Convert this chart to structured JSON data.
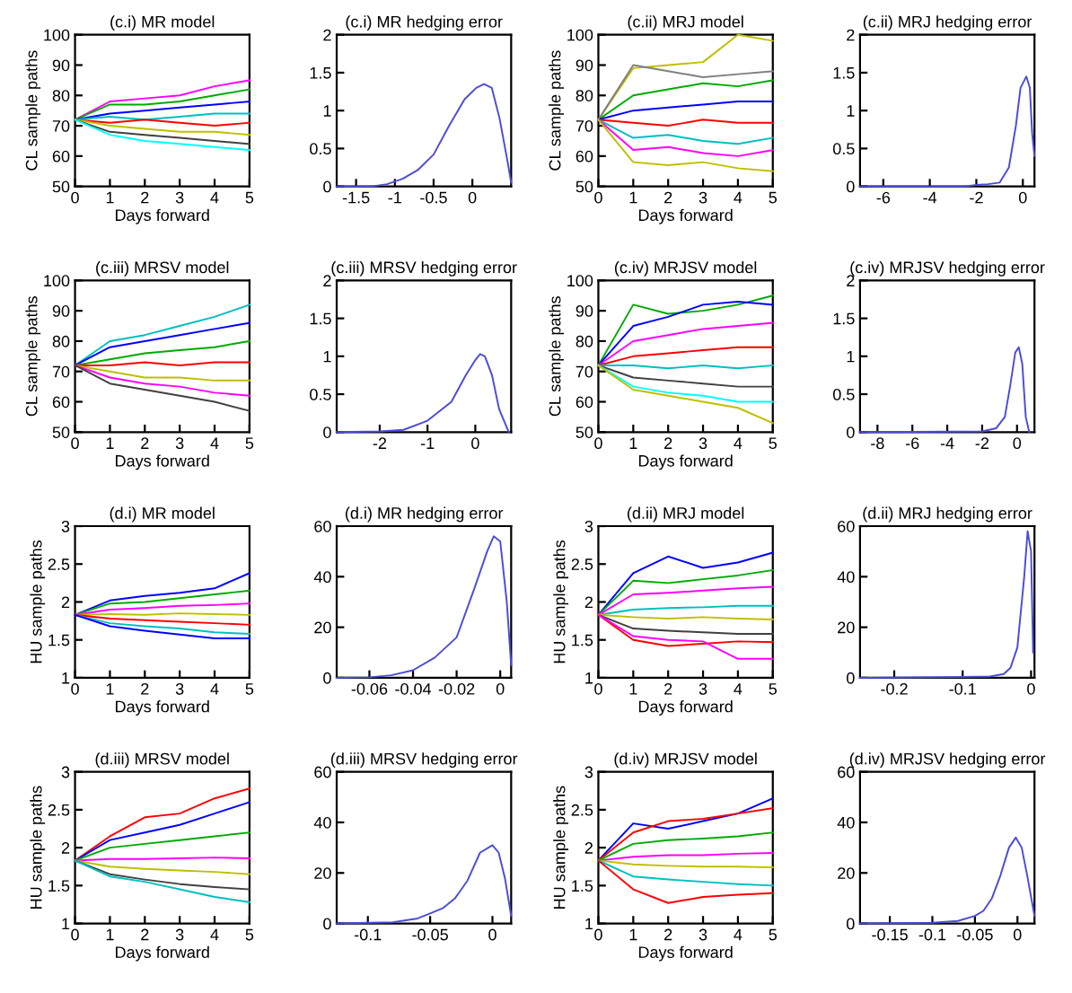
{
  "chart_data": [
    {
      "type": "line",
      "title": "(c.i) MR model",
      "xlabel": "Days forward",
      "ylabel": "CL sample paths",
      "x": [
        0,
        1,
        2,
        3,
        4,
        5
      ],
      "xlim": [
        0,
        5
      ],
      "xticks": [
        0,
        1,
        2,
        3,
        4,
        5
      ],
      "ylim": [
        50,
        100
      ],
      "yticks": [
        50,
        60,
        70,
        80,
        90,
        100
      ],
      "series": [
        {
          "color": "#ff00ff",
          "values": [
            72,
            78,
            79,
            80,
            83,
            85
          ]
        },
        {
          "color": "#00aa00",
          "values": [
            72,
            77,
            77,
            78,
            80,
            82
          ]
        },
        {
          "color": "#0000ff",
          "values": [
            72,
            74,
            75,
            76,
            77,
            78
          ]
        },
        {
          "color": "#00bfbf",
          "values": [
            72,
            73,
            72,
            73,
            74,
            74
          ]
        },
        {
          "color": "#ff0000",
          "values": [
            72,
            71,
            72,
            71,
            70,
            71
          ]
        },
        {
          "color": "#bfbf00",
          "values": [
            72,
            70,
            69,
            68,
            68,
            67
          ]
        },
        {
          "color": "#404040",
          "values": [
            72,
            68,
            67,
            66,
            65,
            64
          ]
        },
        {
          "color": "#00ffff",
          "values": [
            72,
            67,
            65,
            64,
            63,
            62
          ]
        }
      ]
    },
    {
      "type": "line",
      "title": "(c.i) MR hedging error",
      "xlim": [
        -1.75,
        0.5
      ],
      "xticks": [
        -1.5,
        -1,
        -0.5,
        0
      ],
      "ylim": [
        0,
        2
      ],
      "yticks": [
        0,
        0.5,
        1,
        1.5,
        2
      ],
      "series": [
        {
          "color": "#4b4bdb",
          "x": [
            -1.75,
            -1.3,
            -1.1,
            -0.9,
            -0.7,
            -0.5,
            -0.3,
            -0.1,
            0.05,
            0.15,
            0.25,
            0.35,
            0.45,
            0.5
          ],
          "values": [
            0,
            0,
            0.03,
            0.1,
            0.22,
            0.42,
            0.8,
            1.15,
            1.3,
            1.35,
            1.3,
            0.9,
            0.35,
            0.05
          ]
        }
      ]
    },
    {
      "type": "line",
      "title": "(c.ii) MRJ model",
      "xlabel": "Days forward",
      "ylabel": "CL sample paths",
      "x": [
        0,
        1,
        2,
        3,
        4,
        5
      ],
      "xlim": [
        0,
        5
      ],
      "xticks": [
        0,
        1,
        2,
        3,
        4,
        5
      ],
      "ylim": [
        50,
        100
      ],
      "yticks": [
        50,
        60,
        70,
        80,
        90,
        100
      ],
      "series": [
        {
          "color": "#bfbf00",
          "values": [
            72,
            89,
            90,
            91,
            100,
            98
          ]
        },
        {
          "color": "#808080",
          "values": [
            72,
            90,
            88,
            86,
            87,
            88
          ]
        },
        {
          "color": "#00aa00",
          "values": [
            72,
            80,
            82,
            84,
            83,
            85
          ]
        },
        {
          "color": "#0000ff",
          "values": [
            72,
            75,
            76,
            77,
            78,
            78
          ]
        },
        {
          "color": "#ff0000",
          "values": [
            72,
            71,
            70,
            72,
            71,
            71
          ]
        },
        {
          "color": "#00bfbf",
          "values": [
            72,
            66,
            67,
            65,
            64,
            66
          ]
        },
        {
          "color": "#ff00ff",
          "values": [
            72,
            62,
            63,
            61,
            60,
            62
          ]
        },
        {
          "color": "#bfbf00",
          "values": [
            72,
            58,
            57,
            58,
            56,
            55
          ]
        }
      ]
    },
    {
      "type": "line",
      "title": "(c.ii) MRJ hedging error",
      "xlim": [
        -7,
        0.5
      ],
      "xticks": [
        -6,
        -4,
        -2,
        0
      ],
      "ylim": [
        0,
        2
      ],
      "yticks": [
        0,
        0.5,
        1,
        1.5,
        2
      ],
      "series": [
        {
          "color": "#4b4bdb",
          "x": [
            -7,
            -2.5,
            -2,
            -1.5,
            -1,
            -0.6,
            -0.3,
            -0.1,
            0.15,
            0.3,
            0.4,
            0.5
          ],
          "values": [
            0,
            0,
            0.02,
            0.03,
            0.05,
            0.25,
            0.8,
            1.3,
            1.45,
            1.3,
            0.7,
            0.4
          ]
        }
      ]
    },
    {
      "type": "line",
      "title": "(c.iii) MRSV model",
      "xlabel": "Days forward",
      "ylabel": "CL sample paths",
      "x": [
        0,
        1,
        2,
        3,
        4,
        5
      ],
      "xlim": [
        0,
        5
      ],
      "xticks": [
        0,
        1,
        2,
        3,
        4,
        5
      ],
      "ylim": [
        50,
        100
      ],
      "yticks": [
        50,
        60,
        70,
        80,
        90,
        100
      ],
      "series": [
        {
          "color": "#00bfbf",
          "values": [
            72,
            80,
            82,
            85,
            88,
            92
          ]
        },
        {
          "color": "#0000ff",
          "values": [
            72,
            78,
            80,
            82,
            84,
            86
          ]
        },
        {
          "color": "#00aa00",
          "values": [
            72,
            74,
            76,
            77,
            78,
            80
          ]
        },
        {
          "color": "#ff0000",
          "values": [
            72,
            72,
            73,
            72,
            73,
            73
          ]
        },
        {
          "color": "#bfbf00",
          "values": [
            72,
            70,
            68,
            68,
            67,
            67
          ]
        },
        {
          "color": "#ff00ff",
          "values": [
            72,
            68,
            66,
            65,
            63,
            62
          ]
        },
        {
          "color": "#404040",
          "values": [
            72,
            66,
            64,
            62,
            60,
            57
          ]
        }
      ]
    },
    {
      "type": "line",
      "title": "(c.iii) MRSV hedging error",
      "xlim": [
        -2.9,
        0.75
      ],
      "xticks": [
        -2,
        -1,
        0
      ],
      "ylim": [
        0,
        2
      ],
      "yticks": [
        0,
        0.5,
        1,
        1.5,
        2
      ],
      "series": [
        {
          "color": "#4b4bdb",
          "x": [
            -2.9,
            -2,
            -1.5,
            -1,
            -0.5,
            -0.2,
            0,
            0.1,
            0.2,
            0.35,
            0.5,
            0.7
          ],
          "values": [
            0,
            0.01,
            0.03,
            0.15,
            0.4,
            0.75,
            0.95,
            1.03,
            1.0,
            0.75,
            0.3,
            0
          ]
        }
      ]
    },
    {
      "type": "line",
      "title": "(c.iv) MRJSV model",
      "xlabel": "Days forward",
      "ylabel": "CL sample paths",
      "x": [
        0,
        1,
        2,
        3,
        4,
        5
      ],
      "xlim": [
        0,
        5
      ],
      "xticks": [
        0,
        1,
        2,
        3,
        4,
        5
      ],
      "ylim": [
        50,
        100
      ],
      "yticks": [
        50,
        60,
        70,
        80,
        90,
        100
      ],
      "series": [
        {
          "color": "#00aa00",
          "values": [
            72,
            92,
            89,
            90,
            92,
            95
          ]
        },
        {
          "color": "#0000ff",
          "values": [
            72,
            85,
            88,
            92,
            93,
            92
          ]
        },
        {
          "color": "#ff00ff",
          "values": [
            72,
            80,
            82,
            84,
            85,
            86
          ]
        },
        {
          "color": "#ff0000",
          "values": [
            72,
            75,
            76,
            77,
            78,
            78
          ]
        },
        {
          "color": "#00bfbf",
          "values": [
            72,
            72,
            71,
            72,
            71,
            72
          ]
        },
        {
          "color": "#404040",
          "values": [
            72,
            68,
            67,
            66,
            65,
            65
          ]
        },
        {
          "color": "#00ffff",
          "values": [
            72,
            65,
            63,
            62,
            60,
            60
          ]
        },
        {
          "color": "#bfbf00",
          "values": [
            72,
            64,
            62,
            60,
            58,
            53
          ]
        }
      ]
    },
    {
      "type": "line",
      "title": "(c.iv) MRJSV hedging error",
      "xlim": [
        -9,
        1
      ],
      "xticks": [
        -8,
        -6,
        -4,
        -2,
        0
      ],
      "ylim": [
        0,
        2
      ],
      "yticks": [
        0,
        0.5,
        1,
        1.5,
        2
      ],
      "series": [
        {
          "color": "#4b4bdb",
          "x": [
            -9,
            -2,
            -1.2,
            -0.7,
            -0.4,
            -0.1,
            0.1,
            0.3,
            0.5,
            0.7
          ],
          "values": [
            0,
            0.01,
            0.05,
            0.2,
            0.6,
            1.05,
            1.12,
            0.9,
            0.2,
            0
          ]
        }
      ]
    },
    {
      "type": "line",
      "title": "(d.i) MR model",
      "xlabel": "Days forward",
      "ylabel": "HU sample paths",
      "x": [
        0,
        1,
        2,
        3,
        4,
        5
      ],
      "xlim": [
        0,
        5
      ],
      "xticks": [
        0,
        1,
        2,
        3,
        4,
        5
      ],
      "ylim": [
        1,
        3
      ],
      "yticks": [
        1,
        1.5,
        2,
        2.5,
        3
      ],
      "series": [
        {
          "color": "#0000ff",
          "values": [
            1.83,
            2.02,
            2.08,
            2.12,
            2.18,
            2.38
          ]
        },
        {
          "color": "#00aa00",
          "values": [
            1.83,
            1.98,
            2.0,
            2.05,
            2.1,
            2.15
          ]
        },
        {
          "color": "#ff00ff",
          "values": [
            1.83,
            1.9,
            1.92,
            1.95,
            1.96,
            1.98
          ]
        },
        {
          "color": "#bfbf00",
          "values": [
            1.83,
            1.84,
            1.83,
            1.85,
            1.84,
            1.83
          ]
        },
        {
          "color": "#ff0000",
          "values": [
            1.83,
            1.78,
            1.76,
            1.74,
            1.72,
            1.7
          ]
        },
        {
          "color": "#00bfbf",
          "values": [
            1.83,
            1.72,
            1.68,
            1.65,
            1.6,
            1.58
          ]
        },
        {
          "color": "#0000ff",
          "values": [
            1.83,
            1.68,
            1.62,
            1.57,
            1.52,
            1.52
          ]
        }
      ]
    },
    {
      "type": "line",
      "title": "(d.i) MR hedging error",
      "xlim": [
        -0.075,
        0.005
      ],
      "xticks": [
        -0.06,
        -0.04,
        -0.02,
        0
      ],
      "ylim": [
        0,
        60
      ],
      "yticks": [
        0,
        20,
        40,
        60
      ],
      "series": [
        {
          "color": "#4b4bdb",
          "x": [
            -0.075,
            -0.06,
            -0.05,
            -0.04,
            -0.03,
            -0.02,
            -0.012,
            -0.006,
            -0.003,
            0,
            0.003,
            0.005
          ],
          "values": [
            0,
            0.2,
            1,
            3,
            8,
            16,
            35,
            50,
            56,
            54,
            30,
            5
          ]
        }
      ]
    },
    {
      "type": "line",
      "title": "(d.ii) MRJ model",
      "xlabel": "Days forward",
      "ylabel": "HU sample paths",
      "x": [
        0,
        1,
        2,
        3,
        4,
        5
      ],
      "xlim": [
        0,
        5
      ],
      "xticks": [
        0,
        1,
        2,
        3,
        4,
        5
      ],
      "ylim": [
        1,
        3
      ],
      "yticks": [
        1,
        1.5,
        2,
        2.5,
        3
      ],
      "series": [
        {
          "color": "#0000ff",
          "values": [
            1.83,
            2.38,
            2.6,
            2.45,
            2.52,
            2.65
          ]
        },
        {
          "color": "#00aa00",
          "values": [
            1.83,
            2.28,
            2.25,
            2.3,
            2.35,
            2.42
          ]
        },
        {
          "color": "#ff00ff",
          "values": [
            1.83,
            2.1,
            2.12,
            2.15,
            2.18,
            2.2
          ]
        },
        {
          "color": "#00bfbf",
          "values": [
            1.83,
            1.9,
            1.92,
            1.93,
            1.95,
            1.95
          ]
        },
        {
          "color": "#bfbf00",
          "values": [
            1.83,
            1.8,
            1.78,
            1.8,
            1.78,
            1.77
          ]
        },
        {
          "color": "#404040",
          "values": [
            1.83,
            1.65,
            1.62,
            1.6,
            1.58,
            1.58
          ]
        },
        {
          "color": "#ff0000",
          "values": [
            1.83,
            1.5,
            1.42,
            1.45,
            1.48,
            1.47
          ]
        },
        {
          "color": "#ff00ff",
          "values": [
            1.83,
            1.55,
            1.5,
            1.48,
            1.25,
            1.25
          ]
        }
      ]
    },
    {
      "type": "line",
      "title": "(d.ii) MRJ hedging error",
      "xlim": [
        -0.25,
        0.005
      ],
      "xticks": [
        -0.2,
        -0.1,
        0
      ],
      "ylim": [
        0,
        60
      ],
      "yticks": [
        0,
        20,
        40,
        60
      ],
      "series": [
        {
          "color": "#4b4bdb",
          "x": [
            -0.25,
            -0.1,
            -0.06,
            -0.04,
            -0.03,
            -0.02,
            -0.01,
            -0.005,
            0,
            0.003
          ],
          "values": [
            0,
            0.3,
            0.5,
            1.5,
            4,
            12,
            40,
            58,
            50,
            10
          ]
        }
      ]
    },
    {
      "type": "line",
      "title": "(d.iii) MRSV model",
      "xlabel": "Days forward",
      "ylabel": "HU sample paths",
      "x": [
        0,
        1,
        2,
        3,
        4,
        5
      ],
      "xlim": [
        0,
        5
      ],
      "xticks": [
        0,
        1,
        2,
        3,
        4,
        5
      ],
      "ylim": [
        1,
        3
      ],
      "yticks": [
        1,
        1.5,
        2,
        2.5,
        3
      ],
      "series": [
        {
          "color": "#ff0000",
          "values": [
            1.83,
            2.15,
            2.4,
            2.45,
            2.65,
            2.78
          ]
        },
        {
          "color": "#0000ff",
          "values": [
            1.83,
            2.1,
            2.2,
            2.3,
            2.45,
            2.6
          ]
        },
        {
          "color": "#00aa00",
          "values": [
            1.83,
            2.0,
            2.05,
            2.1,
            2.15,
            2.2
          ]
        },
        {
          "color": "#ff00ff",
          "values": [
            1.83,
            1.85,
            1.85,
            1.86,
            1.87,
            1.86
          ]
        },
        {
          "color": "#bfbf00",
          "values": [
            1.83,
            1.75,
            1.72,
            1.7,
            1.68,
            1.65
          ]
        },
        {
          "color": "#404040",
          "values": [
            1.83,
            1.65,
            1.58,
            1.52,
            1.48,
            1.45
          ]
        },
        {
          "color": "#00bfbf",
          "values": [
            1.83,
            1.62,
            1.55,
            1.45,
            1.35,
            1.28
          ]
        }
      ]
    },
    {
      "type": "line",
      "title": "(d.iii) MRSV hedging error",
      "xlim": [
        -0.125,
        0.015
      ],
      "xticks": [
        -0.1,
        -0.05,
        0
      ],
      "ylim": [
        0,
        60
      ],
      "yticks": [
        0,
        20,
        40,
        60
      ],
      "series": [
        {
          "color": "#4b4bdb",
          "x": [
            -0.125,
            -0.08,
            -0.06,
            -0.05,
            -0.04,
            -0.03,
            -0.02,
            -0.01,
            0,
            0.005,
            0.01,
            0.015
          ],
          "values": [
            0,
            0.5,
            2,
            4,
            6,
            10,
            17,
            28,
            31,
            28,
            18,
            3
          ]
        }
      ]
    },
    {
      "type": "line",
      "title": "(d.iv) MRJSV model",
      "xlabel": "Days forward",
      "ylabel": "HU sample paths",
      "x": [
        0,
        1,
        2,
        3,
        4,
        5
      ],
      "xlim": [
        0,
        5
      ],
      "xticks": [
        0,
        1,
        2,
        3,
        4,
        5
      ],
      "ylim": [
        1,
        3
      ],
      "yticks": [
        1,
        1.5,
        2,
        2.5,
        3
      ],
      "series": [
        {
          "color": "#0000ff",
          "values": [
            1.83,
            2.32,
            2.25,
            2.35,
            2.45,
            2.65
          ]
        },
        {
          "color": "#ff0000",
          "values": [
            1.83,
            2.2,
            2.35,
            2.38,
            2.45,
            2.52
          ]
        },
        {
          "color": "#00aa00",
          "values": [
            1.83,
            2.05,
            2.1,
            2.12,
            2.15,
            2.2
          ]
        },
        {
          "color": "#ff00ff",
          "values": [
            1.83,
            1.88,
            1.9,
            1.9,
            1.92,
            1.93
          ]
        },
        {
          "color": "#bfbf00",
          "values": [
            1.83,
            1.78,
            1.76,
            1.75,
            1.75,
            1.74
          ]
        },
        {
          "color": "#00bfbf",
          "values": [
            1.83,
            1.62,
            1.58,
            1.55,
            1.52,
            1.5
          ]
        },
        {
          "color": "#ff0000",
          "values": [
            1.83,
            1.45,
            1.27,
            1.35,
            1.38,
            1.4
          ]
        }
      ]
    },
    {
      "type": "line",
      "title": "(d.iv) MRJSV hedging error",
      "xlim": [
        -0.185,
        0.02
      ],
      "xticks": [
        -0.15,
        -0.1,
        -0.05,
        0
      ],
      "ylim": [
        0,
        60
      ],
      "yticks": [
        0,
        20,
        40,
        60
      ],
      "series": [
        {
          "color": "#4b4bdb",
          "x": [
            -0.185,
            -0.1,
            -0.07,
            -0.05,
            -0.04,
            -0.03,
            -0.02,
            -0.01,
            -0.002,
            0.005,
            0.012,
            0.02
          ],
          "values": [
            0,
            0.3,
            1,
            3,
            5,
            10,
            19,
            30,
            34,
            30,
            18,
            3
          ]
        }
      ]
    }
  ]
}
